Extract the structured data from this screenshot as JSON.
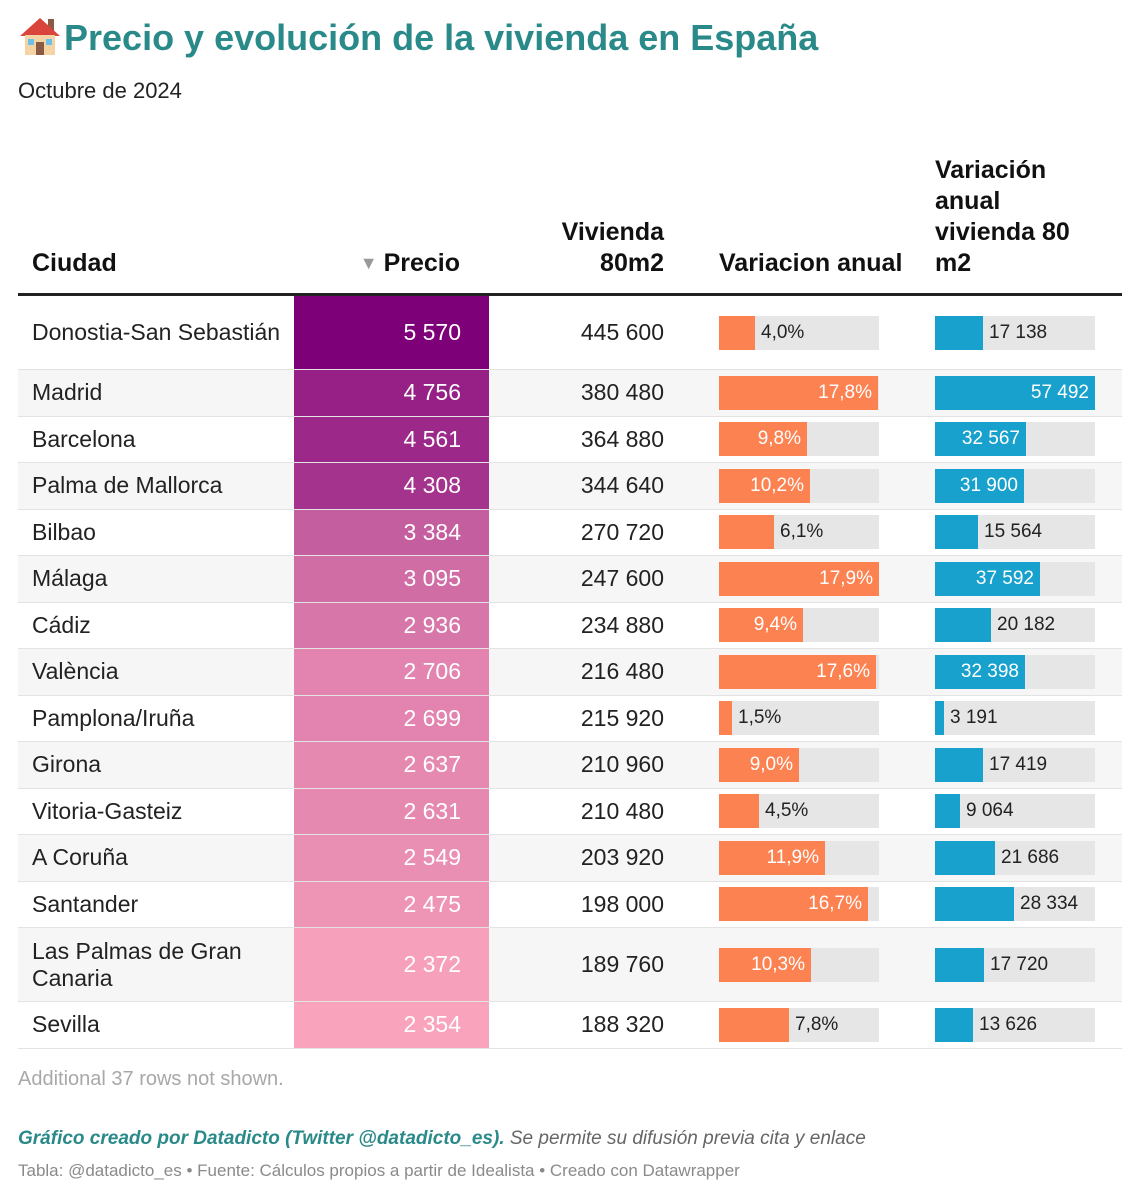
{
  "title": "Precio y evolución de la vivienda en España",
  "title_icon": "house-icon",
  "subtitle": "Octubre de 2024",
  "columns": {
    "city": "Ciudad",
    "price": "Precio",
    "house80": "Vivienda 80m2",
    "variation": "Variacion anual",
    "variation80": "Variación anual vivienda 80 m2"
  },
  "sort_indicator": "▼",
  "colors": {
    "title": "#2a8a89",
    "price_max": "#7e0078",
    "price_min": "#f9a3bc",
    "variation_bar": "#fc8252",
    "variation80_bar": "#18a1cd",
    "bar_track": "#e6e6e6"
  },
  "chart_data": {
    "type": "table",
    "rows": [
      {
        "city": "Donostia-San Sebastián",
        "price": "5 570",
        "price_value": 5570,
        "house80": "445 600",
        "variation": "4,0%",
        "variation_value": 4.0,
        "variation80": "17 138",
        "variation80_value": 17138
      },
      {
        "city": "Madrid",
        "price": "4 756",
        "price_value": 4756,
        "house80": "380 480",
        "variation": "17,8%",
        "variation_value": 17.8,
        "variation80": "57 492",
        "variation80_value": 57492
      },
      {
        "city": "Barcelona",
        "price": "4 561",
        "price_value": 4561,
        "house80": "364 880",
        "variation": "9,8%",
        "variation_value": 9.8,
        "variation80": "32 567",
        "variation80_value": 32567
      },
      {
        "city": "Palma de Mallorca",
        "price": "4 308",
        "price_value": 4308,
        "house80": "344 640",
        "variation": "10,2%",
        "variation_value": 10.2,
        "variation80": "31 900",
        "variation80_value": 31900
      },
      {
        "city": "Bilbao",
        "price": "3 384",
        "price_value": 3384,
        "house80": "270 720",
        "variation": "6,1%",
        "variation_value": 6.1,
        "variation80": "15 564",
        "variation80_value": 15564
      },
      {
        "city": "Málaga",
        "price": "3 095",
        "price_value": 3095,
        "house80": "247 600",
        "variation": "17,9%",
        "variation_value": 17.9,
        "variation80": "37 592",
        "variation80_value": 37592
      },
      {
        "city": "Cádiz",
        "price": "2 936",
        "price_value": 2936,
        "house80": "234 880",
        "variation": "9,4%",
        "variation_value": 9.4,
        "variation80": "20 182",
        "variation80_value": 20182
      },
      {
        "city": "València",
        "price": "2 706",
        "price_value": 2706,
        "house80": "216 480",
        "variation": "17,6%",
        "variation_value": 17.6,
        "variation80": "32 398",
        "variation80_value": 32398
      },
      {
        "city": "Pamplona/Iruña",
        "price": "2 699",
        "price_value": 2699,
        "house80": "215 920",
        "variation": "1,5%",
        "variation_value": 1.5,
        "variation80": "3 191",
        "variation80_value": 3191
      },
      {
        "city": "Girona",
        "price": "2 637",
        "price_value": 2637,
        "house80": "210 960",
        "variation": "9,0%",
        "variation_value": 9.0,
        "variation80": "17 419",
        "variation80_value": 17419
      },
      {
        "city": "Vitoria-Gasteiz",
        "price": "2 631",
        "price_value": 2631,
        "house80": "210 480",
        "variation": "4,5%",
        "variation_value": 4.5,
        "variation80": "9 064",
        "variation80_value": 9064
      },
      {
        "city": "A Coruña",
        "price": "2 549",
        "price_value": 2549,
        "house80": "203 920",
        "variation": "11,9%",
        "variation_value": 11.9,
        "variation80": "21 686",
        "variation80_value": 21686
      },
      {
        "city": "Santander",
        "price": "2 475",
        "price_value": 2475,
        "house80": "198 000",
        "variation": "16,7%",
        "variation_value": 16.7,
        "variation80": "28 334",
        "variation80_value": 28334
      },
      {
        "city": "Las Palmas de Gran Canaria",
        "price": "2 372",
        "price_value": 2372,
        "house80": "189 760",
        "variation": "10,3%",
        "variation_value": 10.3,
        "variation80": "17 720",
        "variation80_value": 17720
      },
      {
        "city": "Sevilla",
        "price": "2 354",
        "price_value": 2354,
        "house80": "188 320",
        "variation": "7,8%",
        "variation_value": 7.8,
        "variation80": "13 626",
        "variation80_value": 13626
      }
    ]
  },
  "footer": {
    "more_rows": "Additional 37 rows not shown.",
    "credit_strong": "Gráfico creado por Datadicto (Twitter @datadicto_es).",
    "credit_rest": " Se permite su difusión previa cita y enlace",
    "source": "Tabla: @datadicto_es • Fuente: Cálculos propios a partir de Idealista • Creado con Datawrapper"
  }
}
